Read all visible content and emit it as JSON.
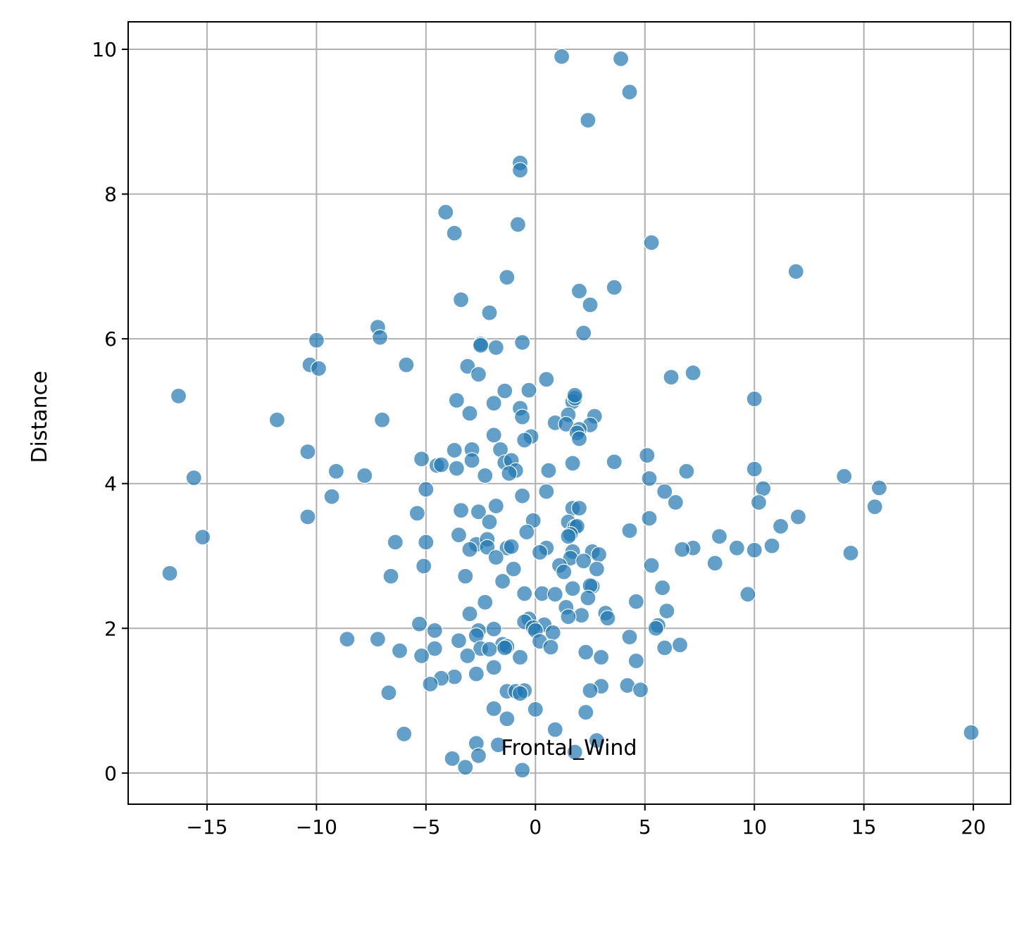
{
  "chart_data": {
    "type": "scatter",
    "title": "",
    "xlabel": "Frontal_Wind",
    "ylabel": "Distance",
    "xlim": [
      -18.6,
      21.7
    ],
    "ylim": [
      -0.43,
      10.38
    ],
    "xticks": [
      -15,
      -10,
      -5,
      0,
      5,
      10,
      15,
      20
    ],
    "yticks": [
      0,
      2,
      4,
      6,
      8,
      10
    ],
    "xtick_labels": [
      "−15",
      "−10",
      "−5",
      "0",
      "5",
      "10",
      "15",
      "20"
    ],
    "ytick_labels": [
      "0",
      "2",
      "4",
      "6",
      "8",
      "10"
    ],
    "grid": true,
    "color": "#1f77b4",
    "points": [
      [
        1.2,
        9.9
      ],
      [
        3.9,
        9.87
      ],
      [
        4.3,
        9.41
      ],
      [
        2.4,
        9.02
      ],
      [
        -0.7,
        8.43
      ],
      [
        -0.7,
        8.33
      ],
      [
        -4.1,
        7.75
      ],
      [
        -3.7,
        7.46
      ],
      [
        -0.8,
        7.58
      ],
      [
        5.3,
        7.33
      ],
      [
        11.9,
        6.93
      ],
      [
        -1.3,
        6.85
      ],
      [
        2.0,
        6.66
      ],
      [
        3.6,
        6.71
      ],
      [
        -3.4,
        6.54
      ],
      [
        2.5,
        6.47
      ],
      [
        -2.1,
        6.36
      ],
      [
        -7.2,
        6.16
      ],
      [
        -7.1,
        6.02
      ],
      [
        2.2,
        6.08
      ],
      [
        -10.0,
        5.98
      ],
      [
        -2.5,
        5.93
      ],
      [
        -2.5,
        5.91
      ],
      [
        -1.8,
        5.88
      ],
      [
        -0.6,
        5.95
      ],
      [
        -10.3,
        5.64
      ],
      [
        -9.9,
        5.59
      ],
      [
        -5.9,
        5.64
      ],
      [
        -3.1,
        5.62
      ],
      [
        -2.6,
        5.51
      ],
      [
        6.2,
        5.47
      ],
      [
        7.2,
        5.53
      ],
      [
        0.5,
        5.44
      ],
      [
        -16.3,
        5.21
      ],
      [
        -1.4,
        5.28
      ],
      [
        -0.3,
        5.29
      ],
      [
        1.7,
        5.13
      ],
      [
        1.8,
        5.18
      ],
      [
        1.8,
        5.22
      ],
      [
        10.0,
        5.17
      ],
      [
        -3.6,
        5.15
      ],
      [
        -1.9,
        5.11
      ],
      [
        -0.7,
        5.04
      ],
      [
        -3.0,
        4.97
      ],
      [
        1.5,
        4.95
      ],
      [
        -11.8,
        4.88
      ],
      [
        -7.0,
        4.88
      ],
      [
        -0.6,
        4.92
      ],
      [
        2.7,
        4.93
      ],
      [
        0.9,
        4.84
      ],
      [
        1.4,
        4.82
      ],
      [
        2.5,
        4.81
      ],
      [
        2.0,
        4.75
      ],
      [
        1.9,
        4.7
      ],
      [
        2.0,
        4.62
      ],
      [
        -1.9,
        4.67
      ],
      [
        -0.2,
        4.65
      ],
      [
        -0.5,
        4.6
      ],
      [
        -10.4,
        4.44
      ],
      [
        -3.7,
        4.46
      ],
      [
        -2.9,
        4.47
      ],
      [
        -1.6,
        4.47
      ],
      [
        -5.2,
        4.34
      ],
      [
        -2.9,
        4.32
      ],
      [
        3.6,
        4.3
      ],
      [
        5.1,
        4.39
      ],
      [
        -4.5,
        4.25
      ],
      [
        -4.3,
        4.26
      ],
      [
        -1.4,
        4.29
      ],
      [
        -1.1,
        4.32
      ],
      [
        -3.6,
        4.21
      ],
      [
        -0.9,
        4.18
      ],
      [
        0.6,
        4.18
      ],
      [
        1.7,
        4.28
      ],
      [
        -9.1,
        4.17
      ],
      [
        -7.8,
        4.11
      ],
      [
        -2.3,
        4.11
      ],
      [
        -1.2,
        4.14
      ],
      [
        10.0,
        4.2
      ],
      [
        6.9,
        4.17
      ],
      [
        -15.6,
        4.08
      ],
      [
        5.2,
        4.07
      ],
      [
        14.1,
        4.1
      ],
      [
        15.7,
        3.94
      ],
      [
        10.4,
        3.93
      ],
      [
        -5.0,
        3.92
      ],
      [
        0.5,
        3.89
      ],
      [
        5.9,
        3.89
      ],
      [
        -0.6,
        3.83
      ],
      [
        -9.3,
        3.82
      ],
      [
        6.4,
        3.74
      ],
      [
        10.2,
        3.74
      ],
      [
        -3.4,
        3.63
      ],
      [
        -2.6,
        3.61
      ],
      [
        -1.8,
        3.69
      ],
      [
        1.7,
        3.66
      ],
      [
        2.0,
        3.66
      ],
      [
        15.5,
        3.68
      ],
      [
        -10.4,
        3.54
      ],
      [
        -5.4,
        3.59
      ],
      [
        12.0,
        3.54
      ],
      [
        5.2,
        3.52
      ],
      [
        -0.1,
        3.49
      ],
      [
        -2.1,
        3.47
      ],
      [
        1.5,
        3.47
      ],
      [
        1.8,
        3.4
      ],
      [
        1.9,
        3.41
      ],
      [
        11.2,
        3.41
      ],
      [
        -0.4,
        3.33
      ],
      [
        4.3,
        3.35
      ],
      [
        1.6,
        3.3
      ],
      [
        1.5,
        3.27
      ],
      [
        -3.5,
        3.29
      ],
      [
        8.4,
        3.27
      ],
      [
        -15.2,
        3.26
      ],
      [
        -6.4,
        3.19
      ],
      [
        -5.0,
        3.19
      ],
      [
        -2.7,
        3.16
      ],
      [
        -2.2,
        3.23
      ],
      [
        -3.0,
        3.09
      ],
      [
        -2.2,
        3.12
      ],
      [
        -1.3,
        3.11
      ],
      [
        -1.1,
        3.13
      ],
      [
        0.5,
        3.11
      ],
      [
        7.2,
        3.11
      ],
      [
        9.2,
        3.11
      ],
      [
        6.7,
        3.09
      ],
      [
        10.0,
        3.08
      ],
      [
        10.8,
        3.14
      ],
      [
        0.2,
        3.05
      ],
      [
        1.7,
        3.06
      ],
      [
        2.6,
        3.06
      ],
      [
        2.9,
        3.02
      ],
      [
        14.4,
        3.04
      ],
      [
        -1.8,
        2.98
      ],
      [
        1.6,
        2.97
      ],
      [
        2.2,
        2.93
      ],
      [
        8.2,
        2.9
      ],
      [
        -5.1,
        2.86
      ],
      [
        1.1,
        2.87
      ],
      [
        5.3,
        2.87
      ],
      [
        -1.0,
        2.82
      ],
      [
        2.8,
        2.82
      ],
      [
        1.3,
        2.78
      ],
      [
        -16.7,
        2.76
      ],
      [
        -6.6,
        2.72
      ],
      [
        -3.2,
        2.72
      ],
      [
        -1.5,
        2.65
      ],
      [
        1.7,
        2.55
      ],
      [
        2.6,
        2.58
      ],
      [
        2.5,
        2.59
      ],
      [
        5.8,
        2.56
      ],
      [
        -0.5,
        2.48
      ],
      [
        0.3,
        2.48
      ],
      [
        9.7,
        2.47
      ],
      [
        0.9,
        2.47
      ],
      [
        2.4,
        2.42
      ],
      [
        -2.3,
        2.36
      ],
      [
        4.6,
        2.37
      ],
      [
        1.4,
        2.29
      ],
      [
        2.1,
        2.18
      ],
      [
        1.5,
        2.16
      ],
      [
        3.2,
        2.21
      ],
      [
        3.3,
        2.14
      ],
      [
        6.0,
        2.24
      ],
      [
        -3.0,
        2.2
      ],
      [
        -0.3,
        2.13
      ],
      [
        -0.5,
        2.09
      ],
      [
        0.4,
        2.05
      ],
      [
        5.6,
        2.04
      ],
      [
        5.5,
        2.0
      ],
      [
        -5.3,
        2.06
      ],
      [
        -4.6,
        1.97
      ],
      [
        -2.6,
        1.97
      ],
      [
        -1.9,
        1.99
      ],
      [
        -0.1,
        2.01
      ],
      [
        0.0,
        1.97
      ],
      [
        0.8,
        1.94
      ],
      [
        -2.7,
        1.9
      ],
      [
        4.3,
        1.88
      ],
      [
        -8.6,
        1.85
      ],
      [
        -7.2,
        1.85
      ],
      [
        -3.5,
        1.83
      ],
      [
        0.2,
        1.82
      ],
      [
        -1.5,
        1.78
      ],
      [
        -1.3,
        1.75
      ],
      [
        6.6,
        1.77
      ],
      [
        -2.5,
        1.72
      ],
      [
        -2.1,
        1.71
      ],
      [
        -4.6,
        1.72
      ],
      [
        -1.4,
        1.73
      ],
      [
        0.7,
        1.74
      ],
      [
        5.9,
        1.73
      ],
      [
        -6.2,
        1.69
      ],
      [
        2.3,
        1.67
      ],
      [
        -5.2,
        1.62
      ],
      [
        -3.1,
        1.62
      ],
      [
        -0.7,
        1.6
      ],
      [
        3.0,
        1.6
      ],
      [
        4.6,
        1.55
      ],
      [
        -1.9,
        1.46
      ],
      [
        -3.7,
        1.33
      ],
      [
        -4.3,
        1.31
      ],
      [
        -2.7,
        1.37
      ],
      [
        -4.8,
        1.23
      ],
      [
        3.0,
        1.2
      ],
      [
        4.2,
        1.21
      ],
      [
        2.5,
        1.14
      ],
      [
        4.8,
        1.15
      ],
      [
        -1.3,
        1.13
      ],
      [
        -0.9,
        1.13
      ],
      [
        -0.5,
        1.14
      ],
      [
        -0.7,
        1.1
      ],
      [
        -6.7,
        1.11
      ],
      [
        -1.9,
        0.89
      ],
      [
        0.0,
        0.88
      ],
      [
        2.3,
        0.84
      ],
      [
        -1.3,
        0.75
      ],
      [
        0.9,
        0.6
      ],
      [
        -6.0,
        0.54
      ],
      [
        19.9,
        0.56
      ],
      [
        2.8,
        0.45
      ],
      [
        -2.7,
        0.41
      ],
      [
        -1.7,
        0.39
      ],
      [
        1.8,
        0.29
      ],
      [
        -2.6,
        0.24
      ],
      [
        -3.8,
        0.2
      ],
      [
        -3.2,
        0.08
      ],
      [
        -0.6,
        0.04
      ]
    ]
  }
}
